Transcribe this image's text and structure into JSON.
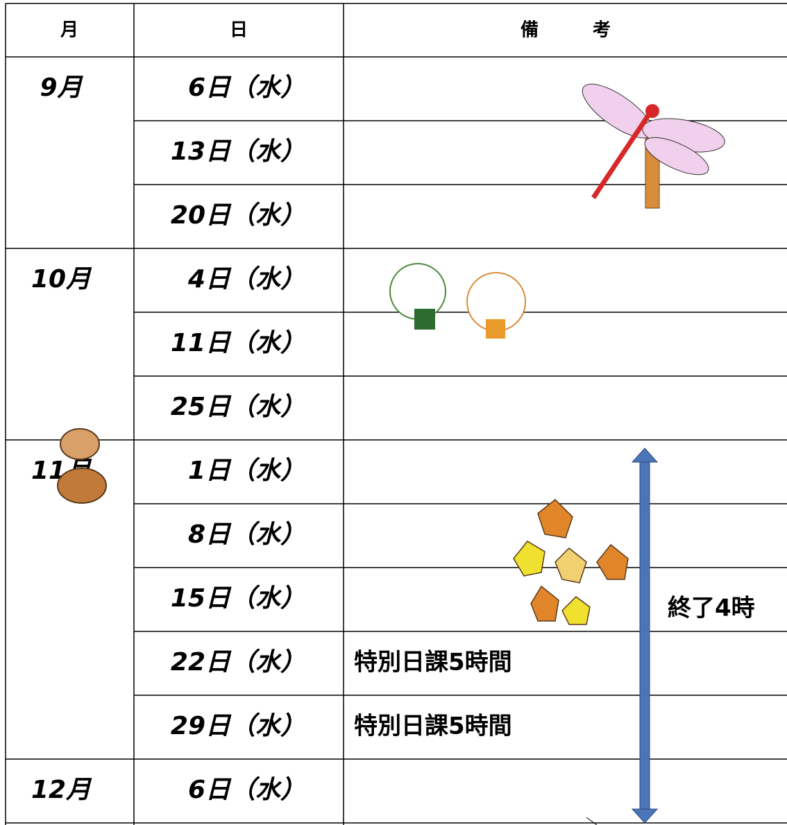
{
  "header": {
    "month": "月",
    "day": "日",
    "remarks": "備　　　考"
  },
  "months": [
    {
      "label": "9月",
      "rows": [
        {
          "date": "6日（水）"
        },
        {
          "date": "13日（水）"
        },
        {
          "date": "20日（水）"
        }
      ]
    },
    {
      "label": "10月",
      "rows": [
        {
          "date": "4日（水）"
        },
        {
          "date": "11日（水）"
        },
        {
          "date": "25日（水）"
        }
      ]
    },
    {
      "label": "11月",
      "rows": [
        {
          "date": "1日（水）"
        },
        {
          "date": "8日（水）"
        },
        {
          "date": "15日（水）"
        },
        {
          "date": "22日（水）",
          "remark": "特別日課5時間"
        },
        {
          "date": "29日（水）",
          "remark": "特別日課5時間"
        }
      ]
    },
    {
      "label": "12月",
      "rows": [
        {
          "date": "6日（水）"
        }
      ]
    }
  ],
  "annotation": "終了4時"
}
